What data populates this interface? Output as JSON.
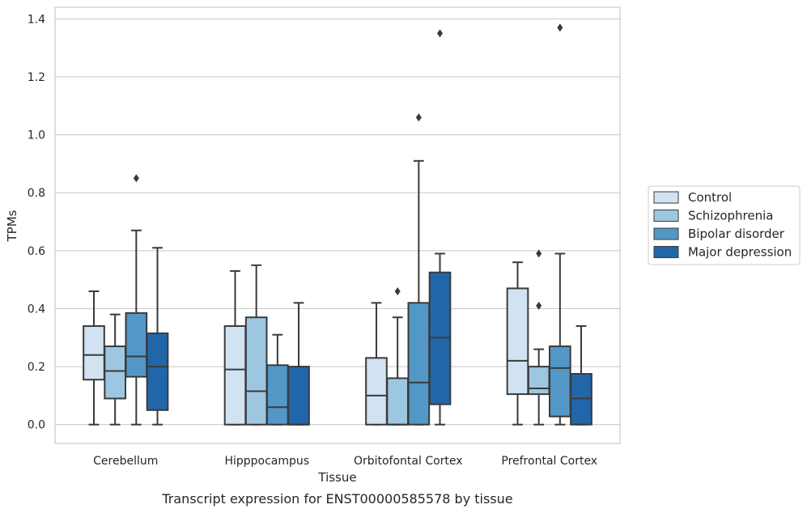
{
  "chart_data": {
    "type": "box",
    "caption": "Transcript expression for ENST00000585578 by tissue",
    "xlabel": "Tissue",
    "ylabel": "TPMs",
    "ylim": [
      -0.065,
      1.44
    ],
    "yticks": [
      0.0,
      0.2,
      0.4,
      0.6,
      0.8,
      1.0,
      1.2,
      1.4
    ],
    "ytick_labels": [
      "0.0",
      "0.2",
      "0.4",
      "0.6",
      "0.8",
      "1.0",
      "1.2",
      "1.4"
    ],
    "grid": "horizontal",
    "legend_position": "right",
    "categories": [
      "Cerebellum",
      "Hipppocampus",
      "Orbitofontal Cortex",
      "Prefrontal Cortex"
    ],
    "series": [
      {
        "name": "Control",
        "color": "#d1e2f2",
        "boxes": [
          {
            "min": 0.0,
            "q1": 0.155,
            "median": 0.24,
            "q3": 0.34,
            "max": 0.46,
            "outliers": []
          },
          {
            "min": 0.0,
            "q1": 0.0,
            "median": 0.19,
            "q3": 0.34,
            "max": 0.53,
            "outliers": []
          },
          {
            "min": 0.0,
            "q1": 0.0,
            "median": 0.1,
            "q3": 0.23,
            "max": 0.42,
            "outliers": []
          },
          {
            "min": 0.0,
            "q1": 0.105,
            "median": 0.22,
            "q3": 0.47,
            "max": 0.56,
            "outliers": []
          }
        ]
      },
      {
        "name": "Schizophrenia",
        "color": "#9dc7e0",
        "boxes": [
          {
            "min": 0.0,
            "q1": 0.09,
            "median": 0.185,
            "q3": 0.27,
            "max": 0.38,
            "outliers": []
          },
          {
            "min": 0.0,
            "q1": 0.0,
            "median": 0.115,
            "q3": 0.37,
            "max": 0.55,
            "outliers": []
          },
          {
            "min": 0.0,
            "q1": 0.0,
            "median": 0.0,
            "q3": 0.16,
            "max": 0.37,
            "outliers": [
              0.46
            ]
          },
          {
            "min": 0.0,
            "q1": 0.105,
            "median": 0.125,
            "q3": 0.2,
            "max": 0.26,
            "outliers": [
              0.41,
              0.59
            ]
          }
        ]
      },
      {
        "name": "Bipolar disorder",
        "color": "#5397c7",
        "boxes": [
          {
            "min": 0.0,
            "q1": 0.165,
            "median": 0.235,
            "q3": 0.385,
            "max": 0.67,
            "outliers": [
              0.85
            ]
          },
          {
            "min": 0.0,
            "q1": 0.0,
            "median": 0.06,
            "q3": 0.205,
            "max": 0.31,
            "outliers": []
          },
          {
            "min": 0.0,
            "q1": 0.0,
            "median": 0.145,
            "q3": 0.42,
            "max": 0.91,
            "outliers": [
              1.06
            ]
          },
          {
            "min": 0.0,
            "q1": 0.028,
            "median": 0.195,
            "q3": 0.27,
            "max": 0.59,
            "outliers": [
              1.37
            ]
          }
        ]
      },
      {
        "name": "Major depression",
        "color": "#2266aa",
        "boxes": [
          {
            "min": 0.0,
            "q1": 0.05,
            "median": 0.2,
            "q3": 0.315,
            "max": 0.61,
            "outliers": []
          },
          {
            "min": 0.0,
            "q1": 0.0,
            "median": 0.0,
            "q3": 0.2,
            "max": 0.42,
            "outliers": []
          },
          {
            "min": 0.0,
            "q1": 0.07,
            "median": 0.3,
            "q3": 0.525,
            "max": 0.59,
            "outliers": [
              1.35
            ]
          },
          {
            "min": 0.0,
            "q1": 0.0,
            "median": 0.09,
            "q3": 0.175,
            "max": 0.34,
            "outliers": []
          }
        ]
      }
    ]
  }
}
